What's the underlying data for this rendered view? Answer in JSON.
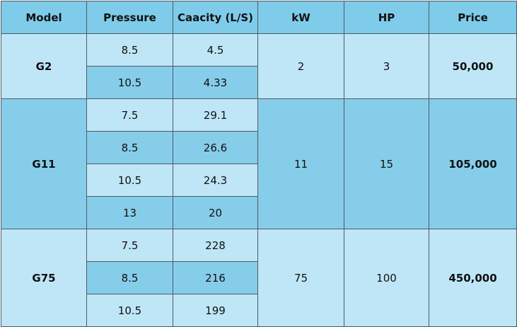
{
  "header": [
    "Model",
    "Pressure",
    "Caacity (L/S)",
    "kW",
    "HP",
    "Price"
  ],
  "groups": [
    {
      "model": "G2",
      "rows": [
        [
          "8.5",
          "4.5"
        ],
        [
          "10.5",
          "4.33"
        ]
      ],
      "kw": "2",
      "hp": "3",
      "price": "50,000"
    },
    {
      "model": "G11",
      "rows": [
        [
          "7.5",
          "29.1"
        ],
        [
          "8.5",
          "26.6"
        ],
        [
          "10.5",
          "24.3"
        ],
        [
          "13",
          "20"
        ]
      ],
      "kw": "11",
      "hp": "15",
      "price": "105,000"
    },
    {
      "model": "G75",
      "rows": [
        [
          "7.5",
          "228"
        ],
        [
          "8.5",
          "216"
        ],
        [
          "10.5",
          "199"
        ]
      ],
      "kw": "75",
      "hp": "100",
      "price": "450,000"
    }
  ]
}
